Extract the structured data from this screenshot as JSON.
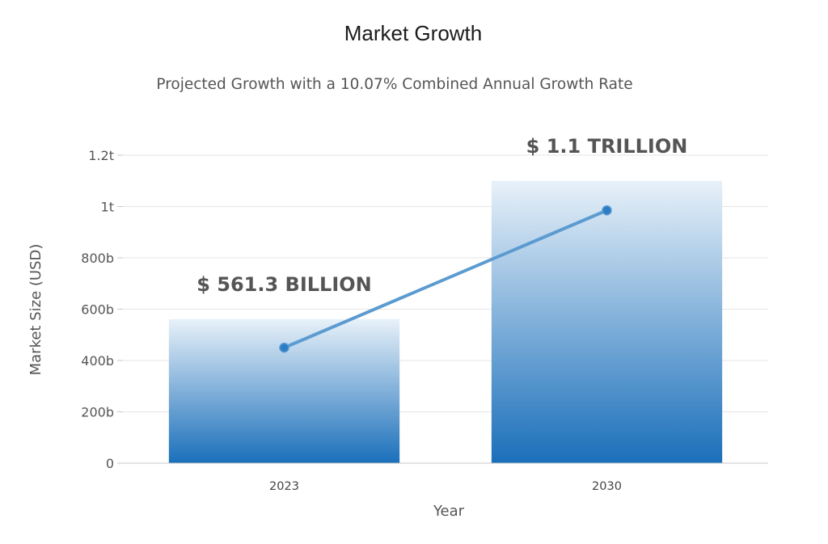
{
  "chart_data": {
    "type": "bar",
    "title": "Market Growth",
    "subtitle": "Projected Growth with a 10.07% Combined Annual Growth Rate",
    "xlabel": "Year",
    "ylabel": "Market Size (USD)",
    "categories": [
      "2023",
      "2030"
    ],
    "series": [
      {
        "type": "bar",
        "values": [
          561300000000,
          1100000000000
        ],
        "data_labels": [
          "$ 561.3 BILLION",
          "$ 1.1 TRILLION"
        ]
      },
      {
        "type": "line",
        "values": [
          450000000000,
          985000000000
        ]
      }
    ],
    "ylim": [
      0,
      1200000000000
    ],
    "yticks": [
      {
        "value": 0,
        "label": "0"
      },
      {
        "value": 200000000000,
        "label": "200b"
      },
      {
        "value": 400000000000,
        "label": "400b"
      },
      {
        "value": 600000000000,
        "label": "600b"
      },
      {
        "value": 800000000000,
        "label": "800b"
      },
      {
        "value": 1000000000000,
        "label": "1t"
      },
      {
        "value": 1200000000000,
        "label": "1.2t"
      }
    ],
    "grid": true,
    "colors": {
      "bar_top": "#e8f1f9",
      "bar_bottom": "#1a6fba",
      "line": "#5b9bd0",
      "point": "#2d7dc4",
      "grid": "#e6e6e6"
    }
  }
}
